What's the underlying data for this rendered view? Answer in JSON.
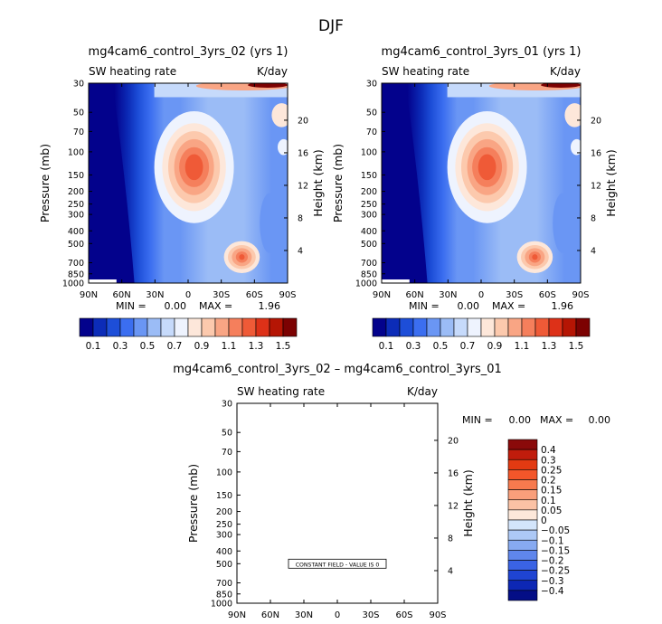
{
  "page": {
    "title": "DJF"
  },
  "chart_data": [
    {
      "type": "heatmap",
      "title": "mg4cam6_control_3yrs_02 (yrs 1)",
      "left_label": "SW heating rate",
      "units": "K/day",
      "ylabel": "Pressure (mb)",
      "ylabel_right": "Height (km)",
      "x_ticks": [
        "90N",
        "60N",
        "30N",
        "0",
        "30S",
        "60S",
        "90S"
      ],
      "y_ticks": [
        "30",
        "50",
        "70",
        "100",
        "150",
        "200",
        "250",
        "300",
        "400",
        "500",
        "700",
        "850",
        "1000"
      ],
      "height_ticks": [
        "20",
        "16",
        "12",
        "8",
        "4"
      ],
      "min_label": "MIN =",
      "min_value": "0.00",
      "max_label": "MAX =",
      "max_value": "1.96",
      "colorbar_labels": [
        "0.1",
        "0.3",
        "0.5",
        "0.7",
        "0.9",
        "1.1",
        "1.3",
        "1.5"
      ],
      "colorbar_colors": [
        "#03028c",
        "#0c2cb8",
        "#1d4ed8",
        "#3b6ef0",
        "#6a96f4",
        "#9bbcf6",
        "#c6dafb",
        "#eef3fe",
        "#fde7da",
        "#fcc9ad",
        "#f9a584",
        "#f57f5c",
        "#ef5a37",
        "#dd3118",
        "#b51504",
        "#7c0202"
      ],
      "field_data": {
        "units": "K/day",
        "max_value": 1.96,
        "low_field_colour_index": 0,
        "field_colour_index_range": [
          0,
          13
        ]
      }
    },
    {
      "type": "heatmap",
      "title": "mg4cam6_control_3yrs_01 (yrs 1)",
      "left_label": "SW heating rate",
      "units": "K/day",
      "ylabel": "Pressure (mb)",
      "ylabel_right": "Height (km)",
      "x_ticks": [
        "90N",
        "60N",
        "30N",
        "0",
        "30S",
        "60S",
        "90S"
      ],
      "y_ticks": [
        "30",
        "50",
        "70",
        "100",
        "150",
        "200",
        "250",
        "300",
        "400",
        "500",
        "700",
        "850",
        "1000"
      ],
      "height_ticks": [
        "20",
        "16",
        "12",
        "8",
        "4"
      ],
      "min_label": "MIN =",
      "min_value": "0.00",
      "max_label": "MAX =",
      "max_value": "1.96",
      "colorbar_labels": [
        "0.1",
        "0.3",
        "0.5",
        "0.7",
        "0.9",
        "1.1",
        "1.3",
        "1.5"
      ],
      "colorbar_colors": [
        "#03028c",
        "#0c2cb8",
        "#1d4ed8",
        "#3b6ef0",
        "#6a96f4",
        "#9bbcf6",
        "#c6dafb",
        "#eef3fe",
        "#fde7da",
        "#fcc9ad",
        "#f9a584",
        "#f57f5c",
        "#ef5a37",
        "#dd3118",
        "#b51504",
        "#7c0202"
      ]
    },
    {
      "type": "heatmap",
      "title": "mg4cam6_control_3yrs_02 – mg4cam6_control_3yrs_01",
      "left_label": "SW heating rate",
      "units": "K/day",
      "ylabel": "Pressure (mb)",
      "ylabel_right": "Height (km)",
      "x_ticks": [
        "90N",
        "60N",
        "30N",
        "0",
        "30S",
        "60S",
        "90S"
      ],
      "y_ticks": [
        "30",
        "50",
        "70",
        "100",
        "150",
        "200",
        "250",
        "300",
        "400",
        "500",
        "700",
        "850",
        "1000"
      ],
      "height_ticks": [
        "20",
        "16",
        "12",
        "8",
        "4"
      ],
      "min_label": "MIN =",
      "min_value": "0.00",
      "max_label": "MAX =",
      "max_value": "0.00",
      "annotation": "CONSTANT FIELD - VALUE IS 0",
      "colorbar_labels": [
        "0.4",
        "0.3",
        "0.25",
        "0.2",
        "0.15",
        "0.1",
        "0.05",
        "0",
        "−0.05",
        "−0.1",
        "−0.15",
        "−0.2",
        "−0.25",
        "−0.3",
        "−0.4"
      ],
      "colorbar_colors": [
        "#8a0a0a",
        "#c01c0c",
        "#e23a12",
        "#f3562a",
        "#f77a4e",
        "#f99f7b",
        "#fbc2a5",
        "#fde8da",
        "#d3e5fb",
        "#adc9f6",
        "#87aaf1",
        "#5f86ec",
        "#3a63e4",
        "#1f44d2",
        "#0d27b4",
        "#040e86"
      ]
    }
  ]
}
